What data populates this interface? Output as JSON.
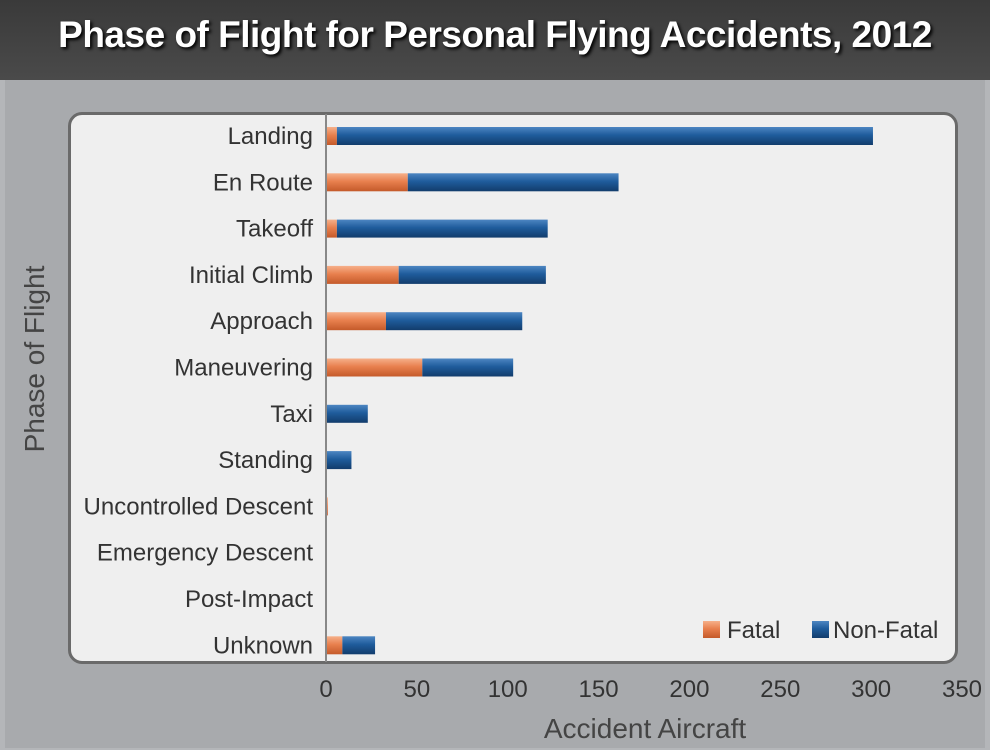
{
  "chart_data": {
    "type": "bar",
    "orientation": "horizontal",
    "stacked": true,
    "title": "Phase of Flight for Personal Flying Accidents, 2012",
    "xlabel": "Accident Aircraft",
    "ylabel": "Phase of Flight",
    "xlim": [
      0,
      350
    ],
    "xticks": [
      "0",
      "50",
      "100",
      "150",
      "200",
      "250",
      "300",
      "350"
    ],
    "categories": [
      "Landing",
      "En Route",
      "Takeoff",
      "Initial Climb",
      "Approach",
      "Maneuvering",
      "Taxi",
      "Standing",
      "Uncontrolled Descent",
      "Emergency Descent",
      "Post-Impact",
      "Unknown"
    ],
    "series": [
      {
        "name": "Fatal",
        "color": "#e8804e",
        "values": [
          6,
          45,
          6,
          40,
          33,
          53,
          0,
          0,
          1,
          0,
          0,
          9
        ]
      },
      {
        "name": "Non-Fatal",
        "color": "#1f5c9c",
        "values": [
          295,
          116,
          116,
          81,
          75,
          50,
          23,
          14,
          0,
          0,
          0,
          18
        ]
      }
    ],
    "legend_position": "bottom-right"
  }
}
